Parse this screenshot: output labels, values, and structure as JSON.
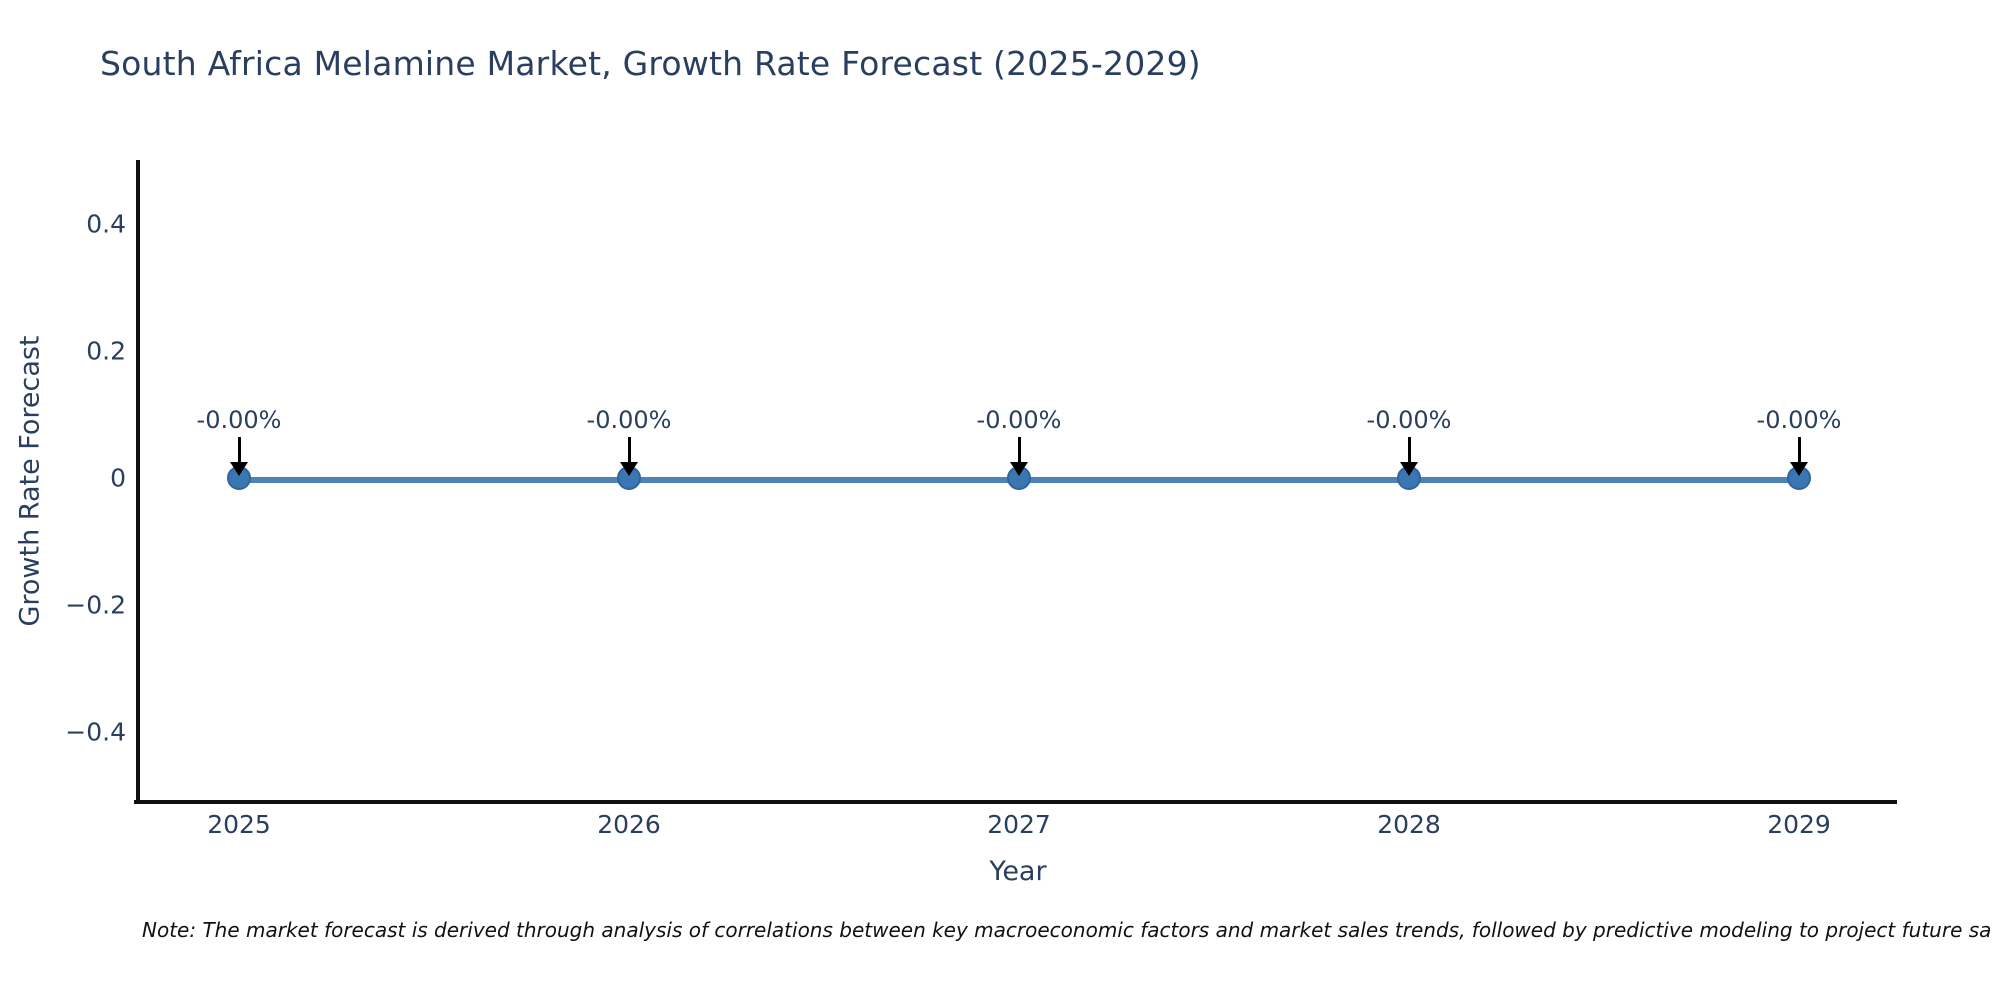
{
  "title": {
    "text": "South Africa Melamine Market, Growth Rate Forecast (2025-2029)"
  },
  "note": {
    "text": "Note: The market forecast is derived through analysis of correlations between key macroeconomic factors and market sales trends, followed by predictive modeling to project future sa"
  },
  "chart_data": {
    "type": "line",
    "title": "South Africa Melamine Market, Growth Rate Forecast (2025-2029)",
    "xlabel": "Year",
    "ylabel": "Growth Rate Forecast",
    "x": [
      2025,
      2026,
      2027,
      2028,
      2029
    ],
    "series": [
      {
        "name": "Growth Rate Forecast",
        "values": [
          0,
          0,
          0,
          0,
          0
        ]
      }
    ],
    "point_labels": [
      "-0.00%",
      "-0.00%",
      "-0.00%",
      "-0.00%",
      "-0.00%"
    ],
    "xticks": [
      "2025",
      "2026",
      "2027",
      "2028",
      "2029"
    ],
    "yticks": [
      {
        "label": "0.4",
        "value": 0.4
      },
      {
        "label": "0.2",
        "value": 0.2
      },
      {
        "label": "0",
        "value": 0
      },
      {
        "label": "−0.2",
        "value": -0.2
      },
      {
        "label": "−0.4",
        "value": -0.4
      }
    ],
    "ylim": [
      -0.51,
      0.5
    ],
    "grid": false,
    "legend_visible": false,
    "annotation_style": "label-with-down-arrow",
    "colors": {
      "line": "#4e84b5",
      "marker": "#3a76b1",
      "marker_edge": "#2f659c",
      "arrow": "#000000",
      "axis": "#101010",
      "text": "#2a3f5f",
      "note_text": "#111111",
      "background": "#ffffff"
    }
  }
}
